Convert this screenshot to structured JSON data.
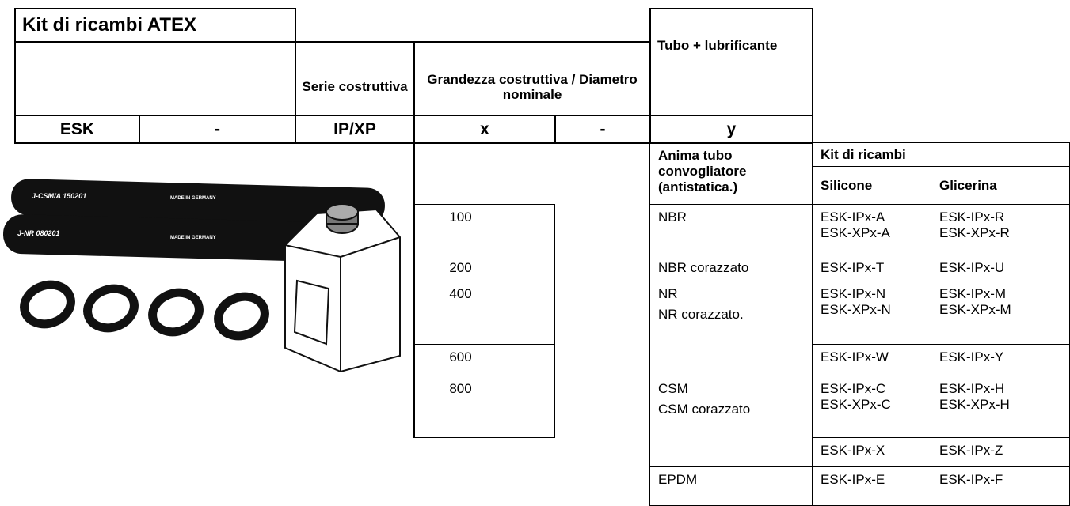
{
  "header": {
    "title": "Kit di ricambi ATEX",
    "columns": [
      "Serie costruttiva",
      "Grandezza costruttiva / Diametro nominale",
      "Tubo + lubrificante"
    ],
    "code": [
      "ESK",
      "-",
      "IP/XP",
      "x",
      "-",
      "y"
    ]
  },
  "image": {
    "labels": [
      "J-CSM/A 150201",
      "MADE IN GERMANY",
      "J-NR 080201",
      "MADE IN GERMANY"
    ]
  },
  "sizes": [
    100,
    200,
    400,
    600,
    800
  ],
  "table": {
    "header": {
      "hose": "Anima tubo convogliatore (antistatica.)",
      "kit": "Kit di ricambi",
      "silicone": "Silicone",
      "glycerin": "Glicerina"
    },
    "groups": [
      {
        "hose": [
          "NBR",
          "NBR corazzato"
        ],
        "rows": [
          {
            "silicone": [
              "ESK-IPx-A",
              "ESK-XPx-A"
            ],
            "glycerin": [
              "ESK-IPx-R",
              "ESK-XPx-R"
            ]
          },
          {
            "silicone": [
              "ESK-IPx-T"
            ],
            "glycerin": [
              "ESK-IPx-U"
            ]
          }
        ]
      },
      {
        "hose": [
          "NR",
          "NR corazzato."
        ],
        "rows": [
          {
            "silicone": [
              "ESK-IPx-N",
              "ESK-XPx-N"
            ],
            "glycerin": [
              "ESK-IPx-M",
              "ESK-XPx-M"
            ]
          },
          {
            "silicone": [
              "ESK-IPx-W"
            ],
            "glycerin": [
              "ESK-IPx-Y"
            ]
          }
        ]
      },
      {
        "hose": [
          "CSM",
          "CSM corazzato"
        ],
        "rows": [
          {
            "silicone": [
              "ESK-IPx-C",
              "ESK-XPx-C"
            ],
            "glycerin": [
              "ESK-IPx-H",
              "ESK-XPx-H"
            ]
          },
          {
            "silicone": [
              "ESK-IPx-X"
            ],
            "glycerin": [
              "ESK-IPx-Z"
            ]
          }
        ]
      },
      {
        "hose": [
          "EPDM"
        ],
        "rows": [
          {
            "silicone": [
              "ESK-IPx-E"
            ],
            "glycerin": [
              "ESK-IPx-F"
            ]
          }
        ]
      }
    ]
  }
}
